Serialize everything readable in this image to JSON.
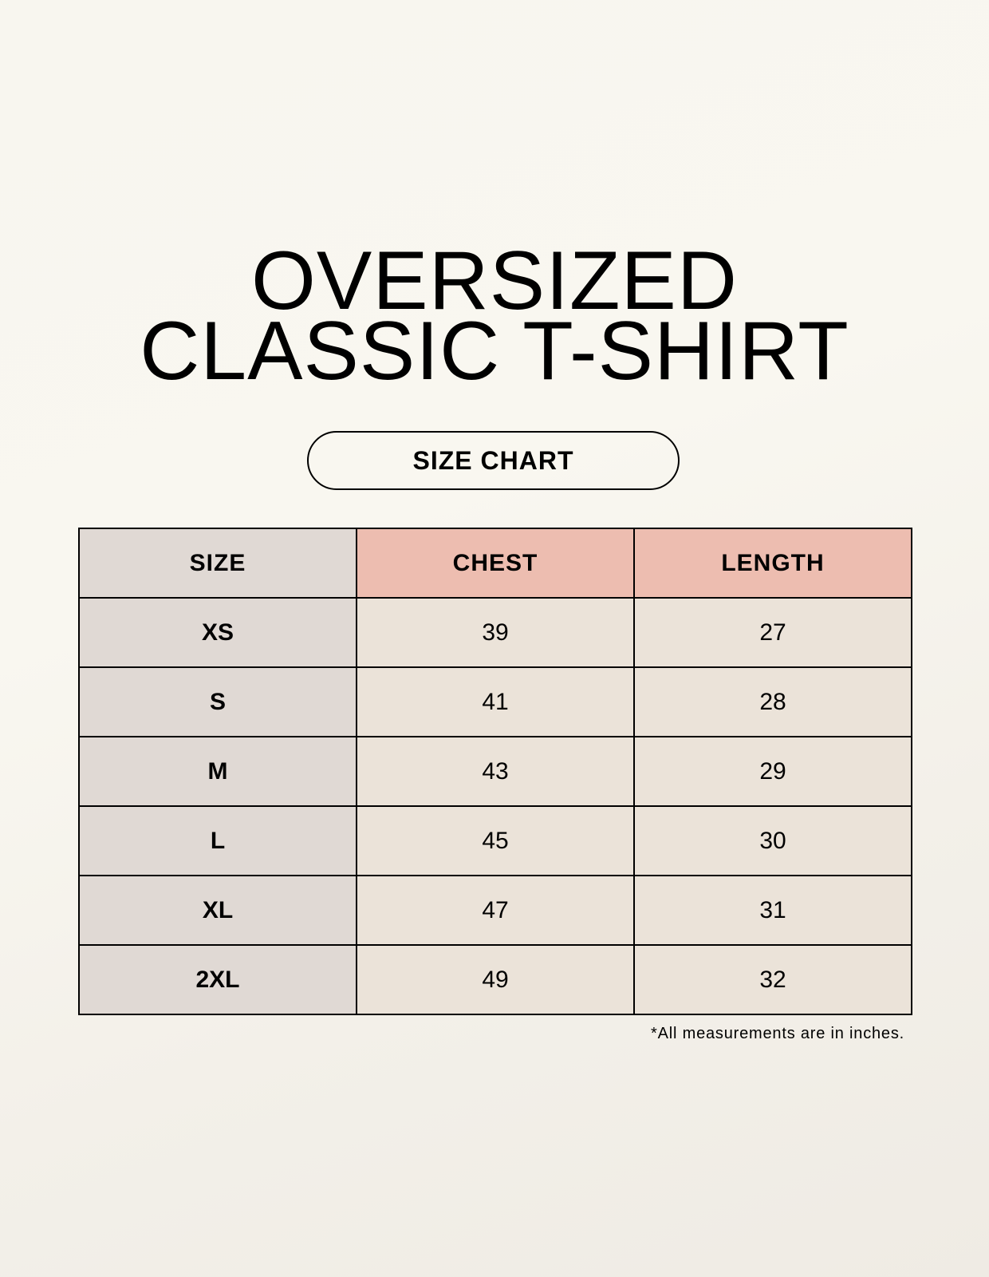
{
  "title": {
    "line1": "OVERSIZED",
    "line2": "CLASSIC T-SHIRT"
  },
  "badge": "SIZE CHART",
  "table": {
    "headers": [
      "SIZE",
      "CHEST",
      "LENGTH"
    ],
    "rows": [
      [
        "XS",
        "39",
        "27"
      ],
      [
        "S",
        "41",
        "28"
      ],
      [
        "M",
        "43",
        "29"
      ],
      [
        "L",
        "45",
        "30"
      ],
      [
        "XL",
        "47",
        "31"
      ],
      [
        "2XL",
        "49",
        "32"
      ]
    ]
  },
  "footnote": "*All measurements are in inches.",
  "colors": {
    "size_column": "#e0d9d4",
    "header_accent": "#edbdb0",
    "cell": "#ebe3d9",
    "background": "#f8f6ef"
  }
}
